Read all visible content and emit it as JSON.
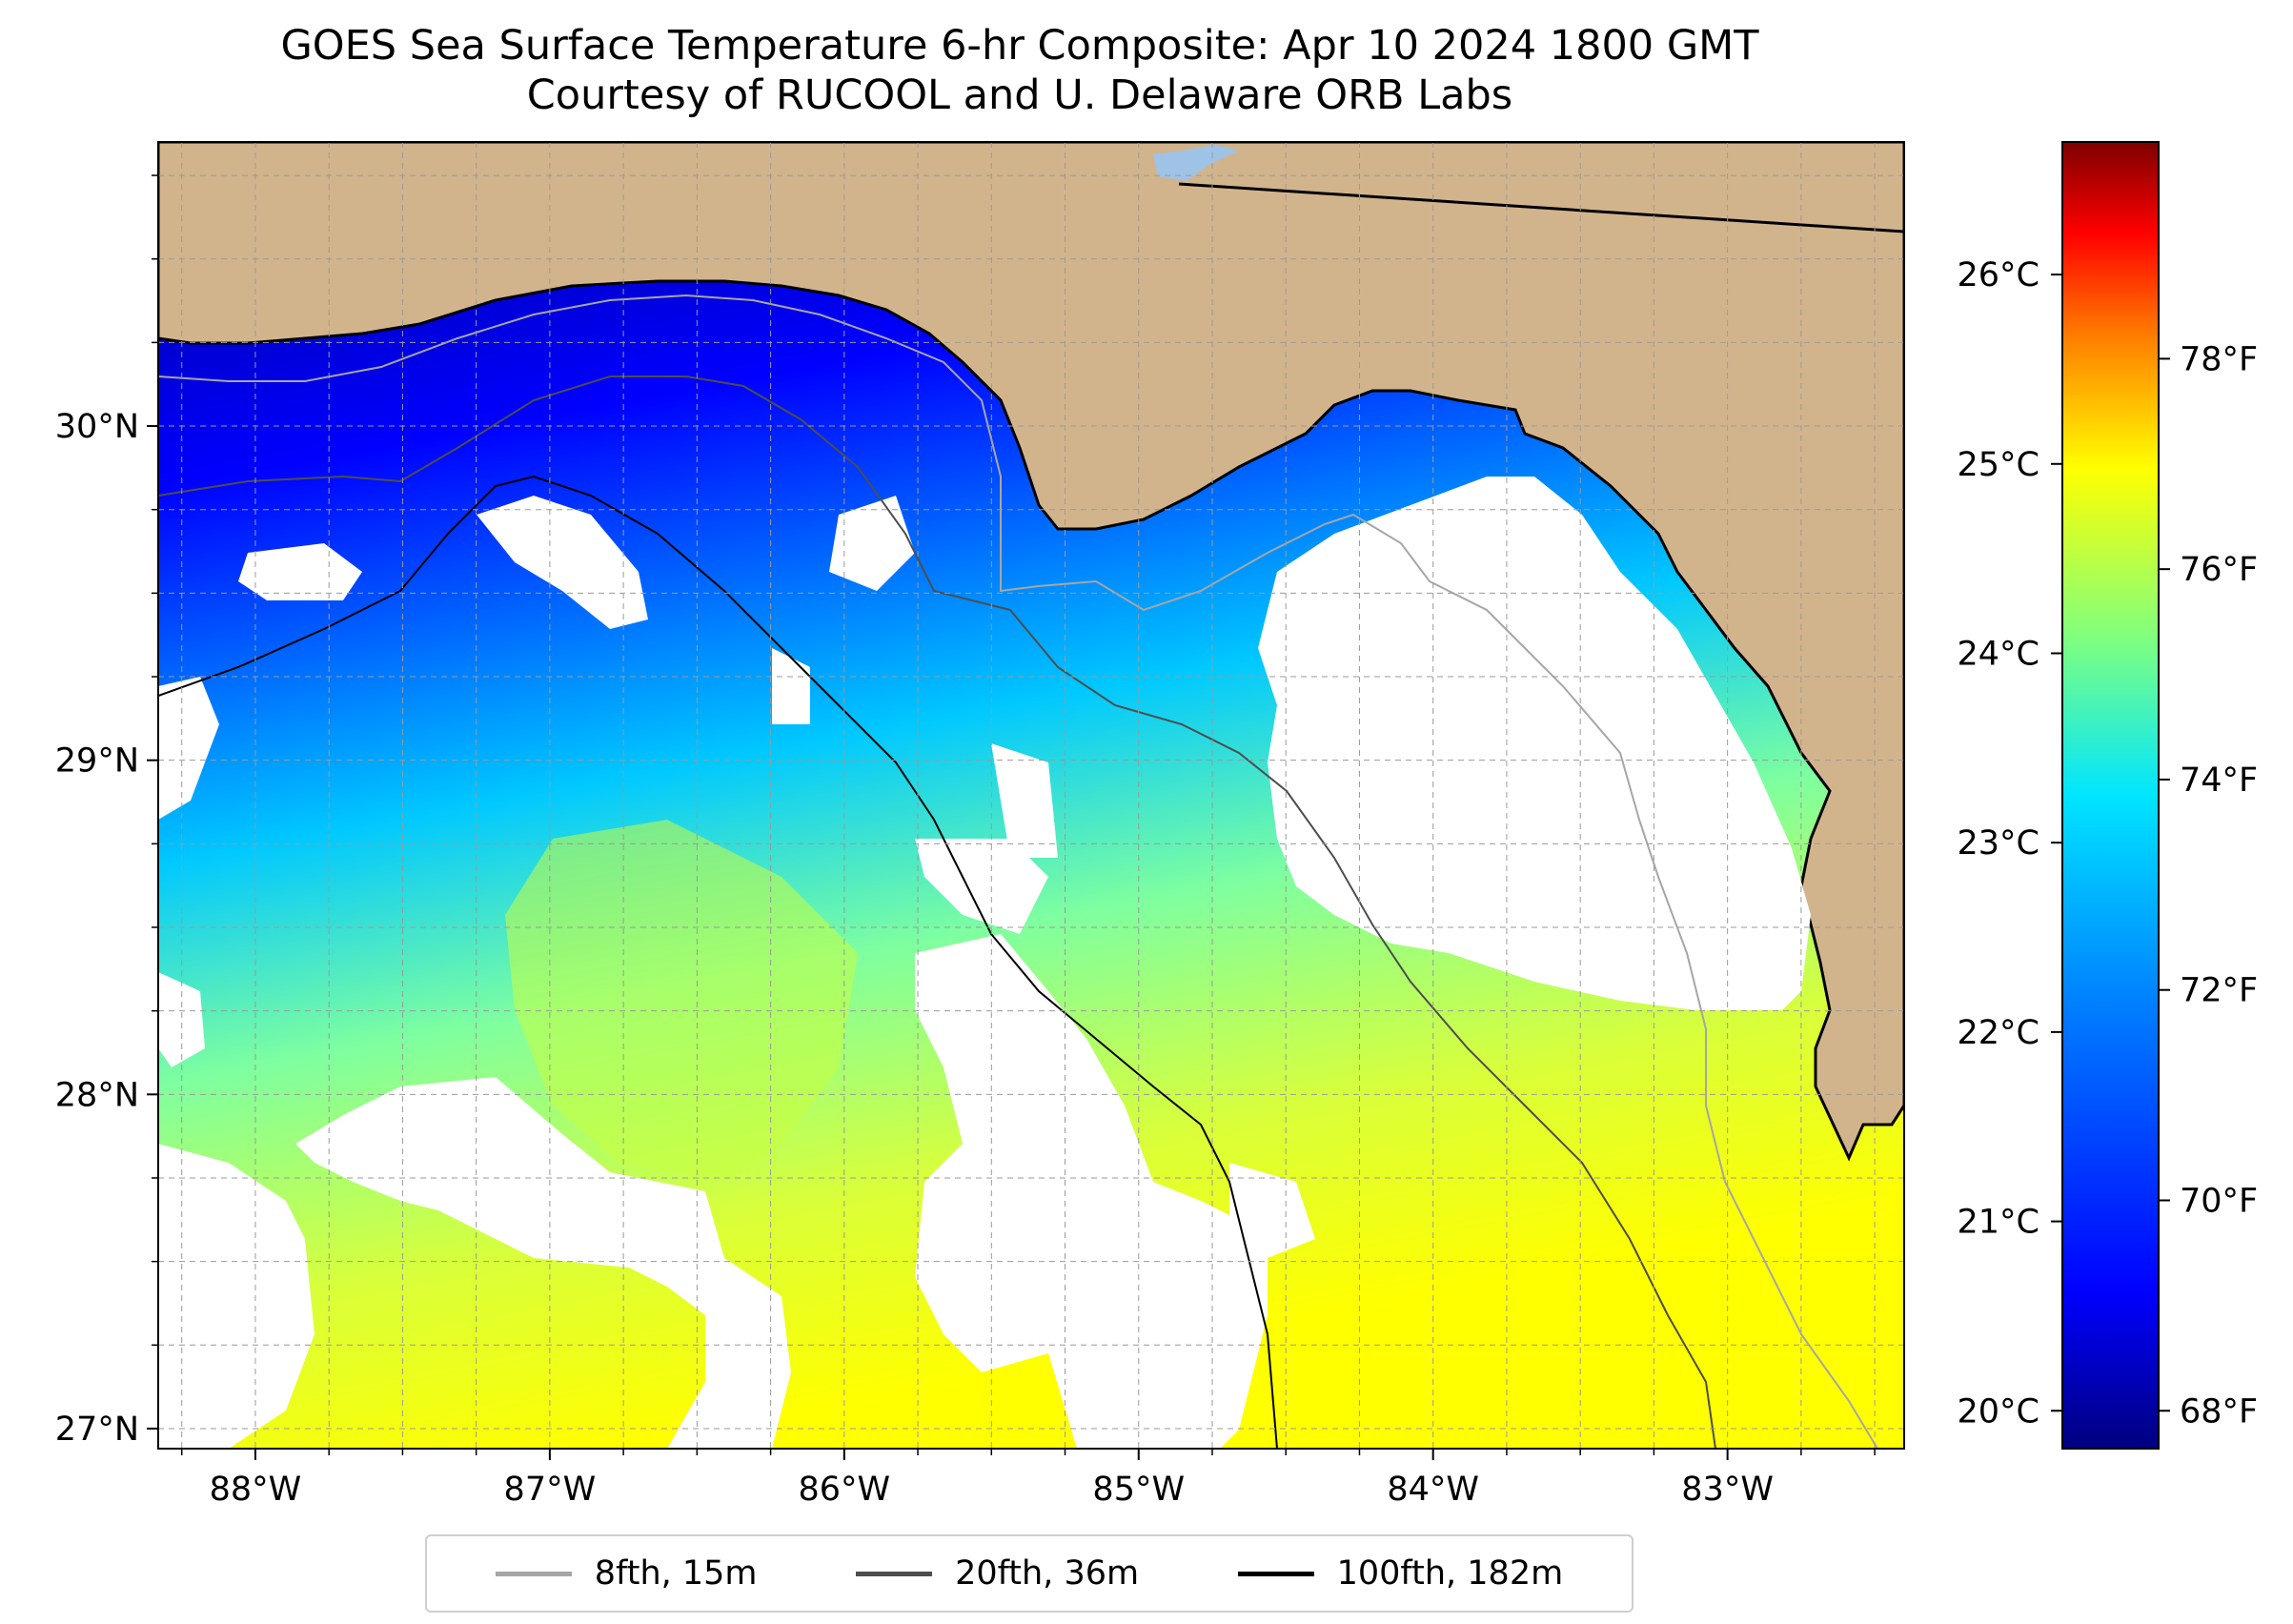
{
  "title": {
    "line1": "GOES Sea Surface Temperature 6-hr Composite: Apr 10 2024 1800 GMT",
    "line2": "Courtesy of RUCOOL and U. Delaware ORB Labs"
  },
  "colors": {
    "land": "#d2b48c",
    "no_data": "#ffffff",
    "grid": "#b0b0b0",
    "coast": "#000000",
    "colormap": [
      "#00007f",
      "#0000ff",
      "#007fff",
      "#00e5ff",
      "#7fff7f",
      "#ffff00",
      "#ff7f00",
      "#ff0000",
      "#7f0000"
    ]
  },
  "axes": {
    "lon_labels": [
      "88°W",
      "87°W",
      "86°W",
      "85°W",
      "84°W",
      "83°W"
    ],
    "lat_labels": [
      "30°N",
      "29°N",
      "28°N",
      "27°N"
    ],
    "lon_values": [
      -88,
      -87,
      -86,
      -85,
      -84,
      -83
    ],
    "lat_values": [
      30,
      29,
      28,
      27
    ],
    "lon_range": [
      -88.33,
      -82.4
    ],
    "lat_range": [
      26.94,
      30.85
    ]
  },
  "colorbar": {
    "celsius_labels": [
      "26°C",
      "25°C",
      "24°C",
      "23°C",
      "22°C",
      "21°C",
      "20°C"
    ],
    "celsius_values": [
      26,
      25,
      24,
      23,
      22,
      21,
      20
    ],
    "fahrenheit_labels": [
      "78°F",
      "76°F",
      "74°F",
      "72°F",
      "70°F",
      "68°F"
    ],
    "fahrenheit_values": [
      78,
      76,
      74,
      72,
      70,
      68
    ],
    "range_c": [
      19.8,
      26.7
    ]
  },
  "legend": {
    "items": [
      {
        "label": "8fth, 15m",
        "color": "#a6a6a6"
      },
      {
        "label": "20fth, 36m",
        "color": "#4d4d4d"
      },
      {
        "label": "100fth, 182m",
        "color": "#000000"
      }
    ]
  }
}
